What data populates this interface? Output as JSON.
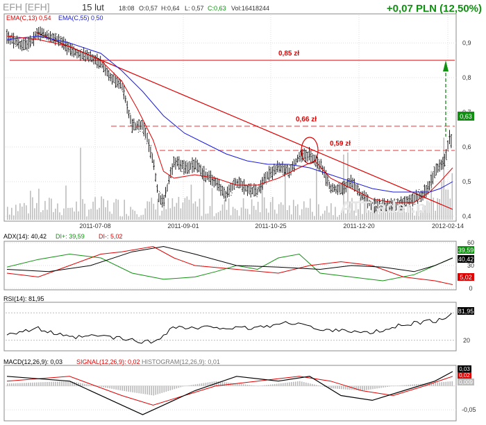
{
  "header": {
    "ticker": "EFH [EFH]",
    "date": "15 lut",
    "time": "18:08",
    "open": "O:0,57",
    "high": "H:0,64",
    "low": "L: 0,57",
    "close": "C:0,63",
    "volume": "Vol:16418244",
    "change": "+0,07 PLN (12,50%)"
  },
  "colors": {
    "price": "#000000",
    "ema13": "#e00000",
    "ema55": "#1a1adc",
    "volume": "#bdbdbd",
    "up": "#109010",
    "down": "#e00000",
    "trend": "#e00000"
  },
  "chart_data": [
    {
      "type": "candlestick",
      "legend": [
        "EMA(C,13) 0,54",
        "EMA(C,55) 0,50"
      ],
      "x_ticks": [
        "2011-07-08",
        "2011-09-01",
        "2011-10-25",
        "2011-12-20",
        "2012-02-14"
      ],
      "y_ticks": [
        "0,9",
        "0,8",
        "0,7",
        "0,6",
        "0,5",
        "0,4"
      ],
      "ylim": [
        0.39,
        0.98
      ],
      "last_value": "0,63",
      "annotations": [
        {
          "label": "0,85 zł",
          "value": 0.85
        },
        {
          "label": "0,66 zł",
          "value": 0.66
        },
        {
          "label": "0,59 zł",
          "value": 0.59
        }
      ],
      "watermark": "ATTrader.pl",
      "price_path": [
        [
          0,
          0.92
        ],
        [
          10,
          0.9
        ],
        [
          20,
          0.89
        ],
        [
          30,
          0.93
        ],
        [
          40,
          0.92
        ],
        [
          50,
          0.91
        ],
        [
          60,
          0.88
        ],
        [
          70,
          0.87
        ],
        [
          80,
          0.86
        ],
        [
          90,
          0.84
        ],
        [
          100,
          0.8
        ],
        [
          110,
          0.78
        ],
        [
          115,
          0.72
        ],
        [
          120,
          0.66
        ],
        [
          130,
          0.66
        ],
        [
          135,
          0.62
        ],
        [
          140,
          0.56
        ],
        [
          145,
          0.46
        ],
        [
          150,
          0.44
        ],
        [
          155,
          0.5
        ],
        [
          160,
          0.56
        ],
        [
          170,
          0.54
        ],
        [
          180,
          0.55
        ],
        [
          190,
          0.52
        ],
        [
          200,
          0.5
        ],
        [
          210,
          0.46
        ],
        [
          220,
          0.5
        ],
        [
          230,
          0.48
        ],
        [
          240,
          0.47
        ],
        [
          250,
          0.52
        ],
        [
          260,
          0.54
        ],
        [
          270,
          0.53
        ],
        [
          280,
          0.57
        ],
        [
          290,
          0.58
        ],
        [
          295,
          0.56
        ],
        [
          300,
          0.55
        ],
        [
          310,
          0.48
        ],
        [
          320,
          0.48
        ],
        [
          330,
          0.5
        ],
        [
          340,
          0.46
        ],
        [
          350,
          0.43
        ],
        [
          360,
          0.43
        ],
        [
          370,
          0.43
        ],
        [
          380,
          0.44
        ],
        [
          390,
          0.45
        ],
        [
          400,
          0.47
        ],
        [
          405,
          0.49
        ],
        [
          410,
          0.53
        ],
        [
          415,
          0.55
        ],
        [
          420,
          0.56
        ],
        [
          424,
          0.63
        ],
        [
          427,
          0.61
        ]
      ],
      "ema13": [
        [
          0,
          0.92
        ],
        [
          30,
          0.91
        ],
        [
          60,
          0.89
        ],
        [
          90,
          0.85
        ],
        [
          110,
          0.79
        ],
        [
          125,
          0.71
        ],
        [
          140,
          0.62
        ],
        [
          150,
          0.53
        ],
        [
          160,
          0.51
        ],
        [
          180,
          0.52
        ],
        [
          200,
          0.51
        ],
        [
          220,
          0.49
        ],
        [
          240,
          0.49
        ],
        [
          260,
          0.51
        ],
        [
          280,
          0.54
        ],
        [
          295,
          0.56
        ],
        [
          310,
          0.51
        ],
        [
          330,
          0.48
        ],
        [
          350,
          0.45
        ],
        [
          370,
          0.44
        ],
        [
          390,
          0.44
        ],
        [
          405,
          0.47
        ],
        [
          415,
          0.5
        ],
        [
          427,
          0.54
        ]
      ],
      "ema55": [
        [
          0,
          0.91
        ],
        [
          30,
          0.92
        ],
        [
          60,
          0.9
        ],
        [
          90,
          0.87
        ],
        [
          110,
          0.82
        ],
        [
          130,
          0.76
        ],
        [
          150,
          0.69
        ],
        [
          170,
          0.64
        ],
        [
          190,
          0.61
        ],
        [
          210,
          0.58
        ],
        [
          230,
          0.56
        ],
        [
          250,
          0.55
        ],
        [
          270,
          0.55
        ],
        [
          290,
          0.54
        ],
        [
          310,
          0.52
        ],
        [
          330,
          0.5
        ],
        [
          350,
          0.48
        ],
        [
          370,
          0.47
        ],
        [
          390,
          0.47
        ],
        [
          405,
          0.47
        ],
        [
          415,
          0.48
        ],
        [
          427,
          0.5
        ]
      ],
      "trendline": [
        [
          28,
          0.93
        ],
        [
          427,
          0.42
        ]
      ]
    },
    {
      "type": "line",
      "title": "ADX(14): 40,42",
      "series": [
        {
          "name": "DI+: 39,59",
          "values": [
            [
              0,
              28
            ],
            [
              30,
              38
            ],
            [
              60,
              45
            ],
            [
              90,
              40
            ],
            [
              120,
              20
            ],
            [
              150,
              12
            ],
            [
              180,
              15
            ],
            [
              200,
              22
            ],
            [
              220,
              30
            ],
            [
              240,
              25
            ],
            [
              260,
              40
            ],
            [
              280,
              45
            ],
            [
              300,
              20
            ],
            [
              330,
              15
            ],
            [
              360,
              10
            ],
            [
              390,
              18
            ],
            [
              410,
              30
            ],
            [
              427,
              40
            ]
          ]
        },
        {
          "name": "DI-: 5,02",
          "values": [
            [
              0,
              20
            ],
            [
              30,
              15
            ],
            [
              60,
              30
            ],
            [
              90,
              45
            ],
            [
              110,
              48
            ],
            [
              140,
              55
            ],
            [
              160,
              40
            ],
            [
              180,
              30
            ],
            [
              220,
              25
            ],
            [
              260,
              20
            ],
            [
              290,
              30
            ],
            [
              320,
              35
            ],
            [
              350,
              30
            ],
            [
              380,
              15
            ],
            [
              410,
              10
            ],
            [
              427,
              5
            ]
          ]
        },
        {
          "name": "ADX",
          "values": [
            [
              0,
              25
            ],
            [
              40,
              22
            ],
            [
              80,
              30
            ],
            [
              120,
              48
            ],
            [
              150,
              55
            ],
            [
              180,
              45
            ],
            [
              220,
              30
            ],
            [
              260,
              28
            ],
            [
              300,
              25
            ],
            [
              330,
              30
            ],
            [
              360,
              28
            ],
            [
              390,
              22
            ],
            [
              410,
              30
            ],
            [
              427,
              40
            ]
          ]
        }
      ],
      "values_shown": [
        "39,59",
        "40,42",
        "5,02"
      ],
      "y_ticks": [
        "60",
        "30",
        "0"
      ],
      "ylim": [
        0,
        60
      ]
    },
    {
      "type": "line",
      "title": "RSI(14): 81,95",
      "series": [
        {
          "name": "RSI",
          "values": [
            [
              0,
              35
            ],
            [
              30,
              45
            ],
            [
              60,
              25
            ],
            [
              90,
              30
            ],
            [
              120,
              20
            ],
            [
              140,
              15
            ],
            [
              160,
              50
            ],
            [
              180,
              45
            ],
            [
              200,
              50
            ],
            [
              220,
              45
            ],
            [
              240,
              48
            ],
            [
              260,
              55
            ],
            [
              280,
              60
            ],
            [
              300,
              40
            ],
            [
              320,
              45
            ],
            [
              340,
              35
            ],
            [
              360,
              40
            ],
            [
              380,
              55
            ],
            [
              400,
              60
            ],
            [
              420,
              65
            ],
            [
              427,
              82
            ]
          ]
        }
      ],
      "value_shown": "81,95",
      "y_ticks": [
        "80",
        "20"
      ],
      "ylim": [
        0,
        100
      ]
    },
    {
      "type": "line",
      "title": "MACD(12,26,9): 0,03",
      "series": [
        {
          "name": "SIGNAL(12,26,9): 0,02",
          "values": [
            [
              0,
              0.01
            ],
            [
              60,
              0.02
            ],
            [
              110,
              -0.02
            ],
            [
              140,
              -0.04
            ],
            [
              170,
              -0.02
            ],
            [
              200,
              0.0
            ],
            [
              240,
              0.01
            ],
            [
              280,
              0.02
            ],
            [
              310,
              0.01
            ],
            [
              340,
              -0.01
            ],
            [
              370,
              -0.02
            ],
            [
              400,
              0.0
            ],
            [
              427,
              0.02
            ]
          ]
        },
        {
          "name": "HISTOGRAM(12,26,9): 0,01",
          "values": [
            [
              0,
              0.005
            ],
            [
              60,
              0.01
            ],
            [
              110,
              -0.01
            ],
            [
              140,
              -0.02
            ],
            [
              170,
              0.0
            ],
            [
              200,
              0.01
            ],
            [
              240,
              0.0
            ],
            [
              280,
              0.01
            ],
            [
              310,
              -0.005
            ],
            [
              340,
              -0.01
            ],
            [
              370,
              0.0
            ],
            [
              400,
              0.005
            ],
            [
              427,
              0.01
            ]
          ]
        },
        {
          "name": "MACD",
          "values": [
            [
              0,
              0.02
            ],
            [
              60,
              0.01
            ],
            [
              110,
              -0.04
            ],
            [
              130,
              -0.06
            ],
            [
              150,
              -0.04
            ],
            [
              180,
              -0.01
            ],
            [
              220,
              0.02
            ],
            [
              260,
              0.01
            ],
            [
              290,
              0.02
            ],
            [
              320,
              -0.02
            ],
            [
              350,
              -0.03
            ],
            [
              380,
              -0.01
            ],
            [
              410,
              0.01
            ],
            [
              427,
              0.03
            ]
          ]
        }
      ],
      "values_shown": [
        "0,03",
        "0,02",
        "0,009"
      ],
      "y_ticks": [
        "-0,05"
      ],
      "ylim": [
        -0.07,
        0.04
      ]
    }
  ]
}
